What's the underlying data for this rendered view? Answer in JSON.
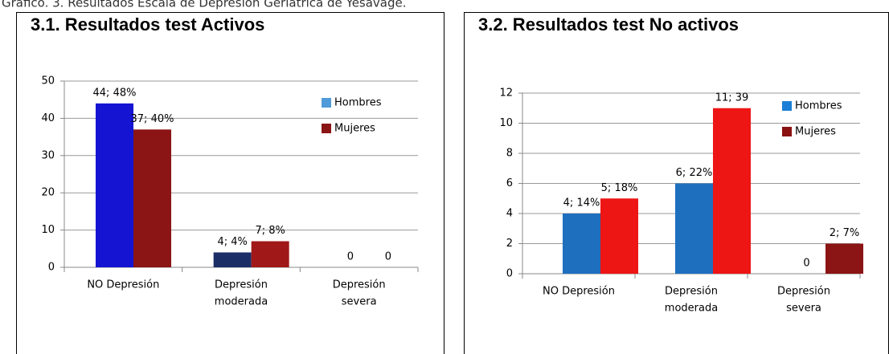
{
  "caption": "Gráfico. 3. Resultados Escala de Depresión Geriátrica de Yesavage.",
  "chart_data": [
    {
      "type": "bar",
      "title": "3.1. Resultados test Activos",
      "categories": [
        [
          "NO Depresión"
        ],
        [
          "Depresión",
          "moderada"
        ],
        [
          "Depresión",
          "severa"
        ]
      ],
      "series": [
        {
          "name": "Hombres",
          "color": "#4f9bd9",
          "bar_colors": [
            "#1414d2",
            "#1c2e66",
            "#1414d2"
          ],
          "values": [
            44,
            4,
            0
          ],
          "value_labels": [
            "44; 48%",
            "4; 4%",
            "0"
          ]
        },
        {
          "name": "Mujeres",
          "color": "#8b1414",
          "bar_colors": [
            "#8b1414",
            "#a01818",
            "#8b1414"
          ],
          "values": [
            37,
            7,
            0
          ],
          "value_labels": [
            "37; 40%",
            "7; 8%",
            "0"
          ]
        }
      ],
      "ylim": [
        0,
        50
      ],
      "yticks": [
        0,
        10,
        20,
        30,
        40,
        50
      ],
      "grid": true,
      "legend": "upper right"
    },
    {
      "type": "bar",
      "title": "3.2. Resultados test No activos",
      "categories": [
        [
          "NO Depresión"
        ],
        [
          "Depresión",
          "moderada"
        ],
        [
          "Depresión",
          "severa"
        ]
      ],
      "series": [
        {
          "name": "Hombres",
          "color": "#1a7fd6",
          "bar_colors": [
            "#1f6fbf",
            "#1f6fbf",
            "#1f6fbf"
          ],
          "values": [
            4,
            6,
            0
          ],
          "value_labels": [
            "4; 14%",
            "6; 22%",
            "0"
          ]
        },
        {
          "name": "Mujeres",
          "color": "#8b1010",
          "bar_colors": [
            "#ee1515",
            "#ee1515",
            "#8b1414"
          ],
          "values": [
            5,
            11,
            2
          ],
          "value_labels": [
            "5; 18%",
            "11; 39",
            "2; 7%"
          ]
        }
      ],
      "ylim": [
        0,
        12
      ],
      "yticks": [
        0,
        2,
        4,
        6,
        8,
        10,
        12
      ],
      "grid": true,
      "legend": "upper right"
    }
  ]
}
